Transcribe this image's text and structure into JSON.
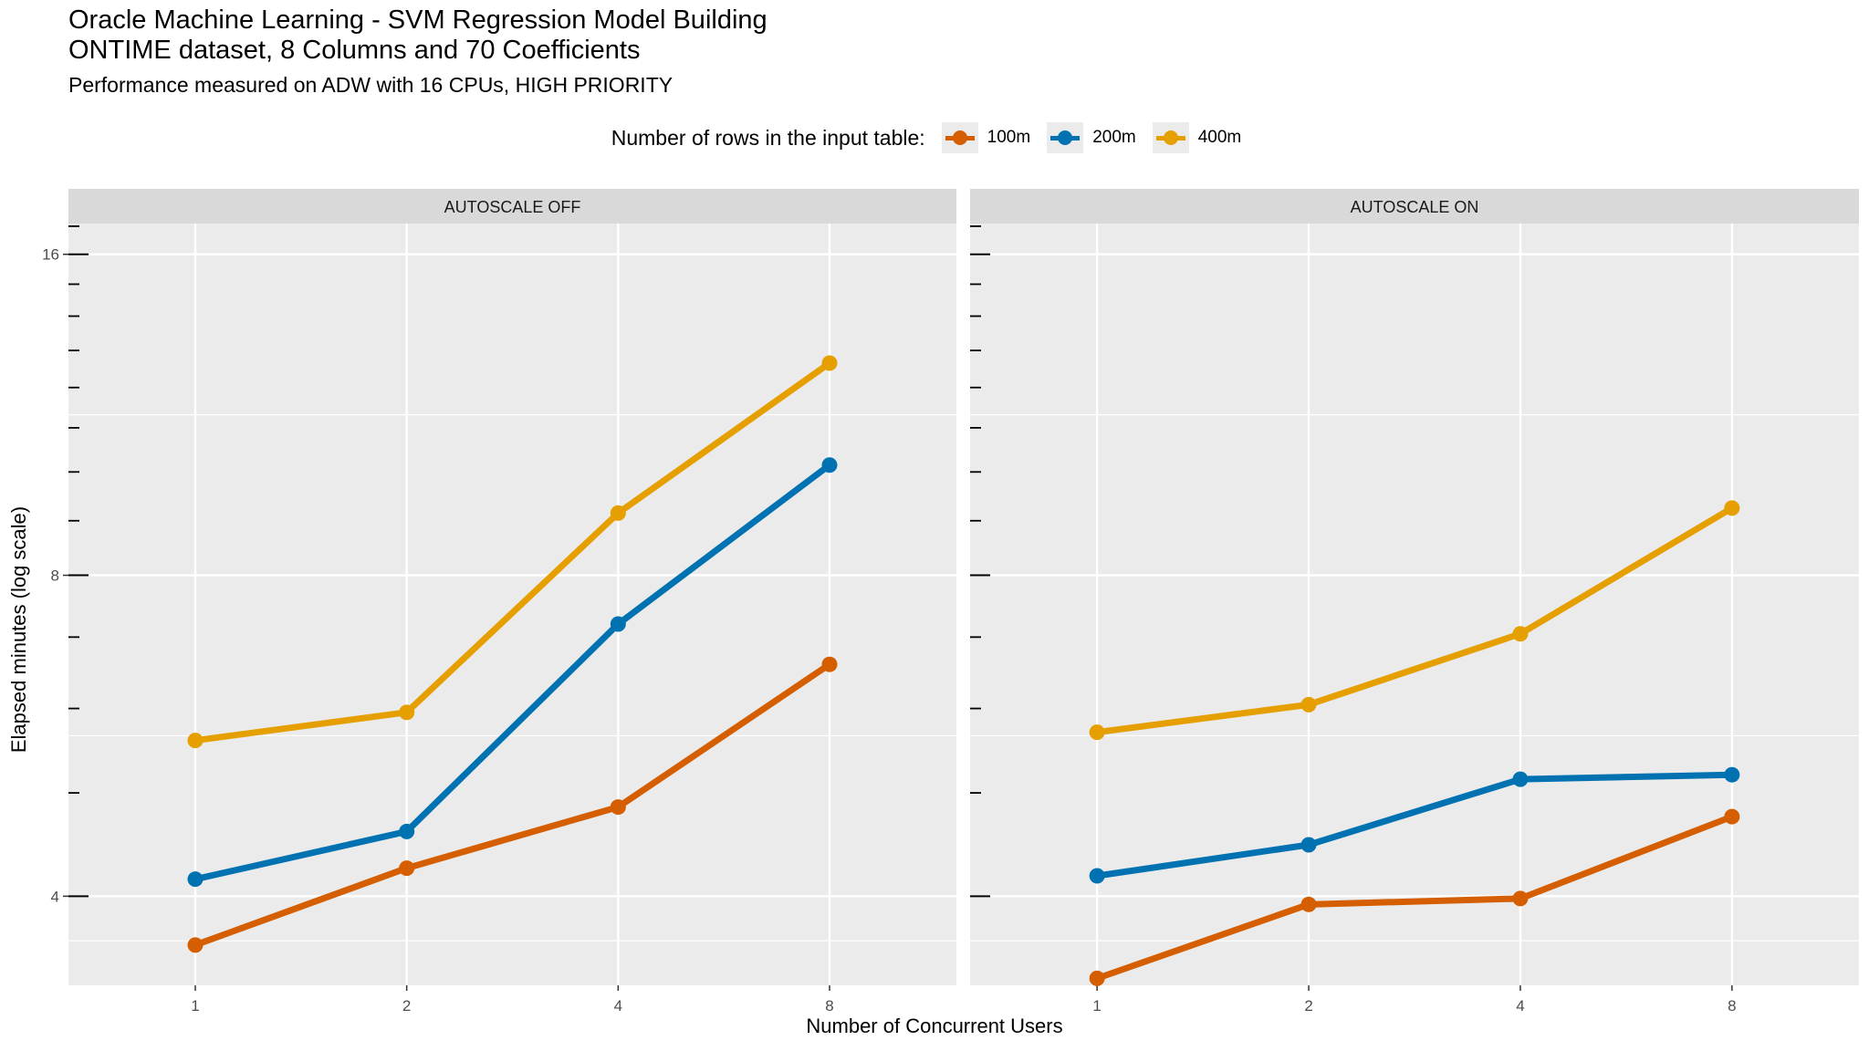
{
  "chart_data": {
    "type": "line",
    "title": "Oracle Machine Learning - SVM Regression Model Building",
    "title_line2": "ONTIME dataset, 8 Columns and 70 Coefficients",
    "subtitle": "Performance measured on ADW with 16 CPUs, HIGH PRIORITY",
    "xlabel": "Number of Concurrent Users",
    "ylabel": "Elapsed minutes (log scale)",
    "yscale": "log2",
    "ylim": [
      3.3,
      17.1
    ],
    "yticks": [
      4,
      8,
      16
    ],
    "x": [
      1,
      2,
      4,
      8
    ],
    "xscale": "log2",
    "legend": {
      "title": "Number of rows in the input table:",
      "placement": "top-center",
      "entries": [
        "100m",
        "200m",
        "400m"
      ]
    },
    "colors": {
      "100m": "#d55e00",
      "200m": "#0072b2",
      "400m": "#e69f00"
    },
    "facets": [
      {
        "label": "AUTOSCALE OFF",
        "series": [
          {
            "name": "100m",
            "values": [
              3.6,
              4.25,
              4.85,
              6.6
            ]
          },
          {
            "name": "200m",
            "values": [
              4.15,
              4.6,
              7.2,
              10.15
            ]
          },
          {
            "name": "400m",
            "values": [
              5.6,
              5.95,
              9.15,
              12.65
            ]
          }
        ]
      },
      {
        "label": "AUTOSCALE ON",
        "series": [
          {
            "name": "100m",
            "values": [
              3.35,
              3.93,
              3.98,
              4.75
            ]
          },
          {
            "name": "200m",
            "values": [
              4.18,
              4.47,
              5.15,
              5.2
            ]
          },
          {
            "name": "400m",
            "values": [
              5.7,
              6.05,
              7.05,
              9.25
            ]
          }
        ]
      }
    ]
  }
}
